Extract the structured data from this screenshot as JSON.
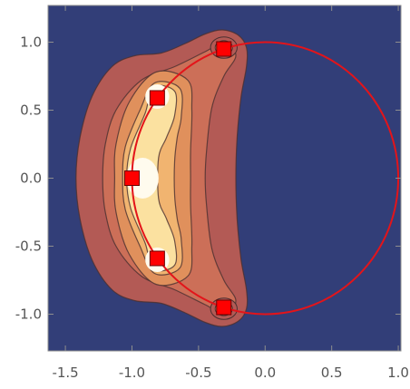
{
  "chart_data": {
    "type": "contour",
    "title": "",
    "xlabel": "",
    "ylabel": "",
    "xlim": [
      -1.63,
      1.02
    ],
    "ylim": [
      -1.27,
      1.27
    ],
    "x_ticks": [
      -1.5,
      -1.0,
      -0.5,
      0.0,
      0.5,
      1.0
    ],
    "x_tick_labels": [
      "-1.5",
      "-1.0",
      "-0.5",
      "0.0",
      "0.5",
      "1.0"
    ],
    "y_ticks": [
      -1.0,
      -0.5,
      0.0,
      0.5,
      1.0
    ],
    "y_tick_labels": [
      "-1.0",
      "-0.5",
      "0.0",
      "0.5",
      "1.0"
    ],
    "grid": false,
    "background_color": "#323e78",
    "contour_levels": [
      {
        "level": 1,
        "color": "#b35a55",
        "points": [
          [
            -0.32,
            1.09
          ],
          [
            -0.2,
            1.05
          ],
          [
            -0.14,
            0.96
          ],
          [
            -0.14,
            0.82
          ],
          [
            -0.18,
            0.6
          ],
          [
            -0.21,
            0.3
          ],
          [
            -0.22,
            0.0
          ],
          [
            -0.21,
            -0.3
          ],
          [
            -0.18,
            -0.6
          ],
          [
            -0.14,
            -0.82
          ],
          [
            -0.14,
            -0.96
          ],
          [
            -0.2,
            -1.05
          ],
          [
            -0.32,
            -1.09
          ],
          [
            -0.45,
            -1.06
          ],
          [
            -0.6,
            -0.99
          ],
          [
            -0.78,
            -0.92
          ],
          [
            -0.98,
            -0.9
          ],
          [
            -1.15,
            -0.82
          ],
          [
            -1.3,
            -0.6
          ],
          [
            -1.39,
            -0.3
          ],
          [
            -1.42,
            0.0
          ],
          [
            -1.39,
            0.3
          ],
          [
            -1.3,
            0.6
          ],
          [
            -1.15,
            0.82
          ],
          [
            -0.98,
            0.9
          ],
          [
            -0.78,
            0.92
          ],
          [
            -0.6,
            0.99
          ],
          [
            -0.45,
            1.06
          ]
        ]
      },
      {
        "level": 2,
        "color": "#cc6f58",
        "points": [
          [
            -0.3,
            1.0
          ],
          [
            -0.22,
            0.9
          ],
          [
            -0.31,
            0.75
          ],
          [
            -0.4,
            0.52
          ],
          [
            -0.44,
            0.2
          ],
          [
            -0.45,
            0.0
          ],
          [
            -0.44,
            -0.2
          ],
          [
            -0.4,
            -0.52
          ],
          [
            -0.31,
            -0.75
          ],
          [
            -0.22,
            -0.9
          ],
          [
            -0.3,
            -1.0
          ],
          [
            -0.45,
            -0.93
          ],
          [
            -0.68,
            -0.82
          ],
          [
            -0.93,
            -0.72
          ],
          [
            -1.12,
            -0.5
          ],
          [
            -1.2,
            -0.25
          ],
          [
            -1.22,
            0.0
          ],
          [
            -1.2,
            0.25
          ],
          [
            -1.12,
            0.5
          ],
          [
            -0.93,
            0.72
          ],
          [
            -0.68,
            0.82
          ],
          [
            -0.45,
            0.93
          ]
        ]
      },
      {
        "level": 3,
        "color": "#e0905c",
        "points": [
          [
            -0.58,
            0.72
          ],
          [
            -0.55,
            0.5
          ],
          [
            -0.56,
            0.2
          ],
          [
            -0.56,
            0.0
          ],
          [
            -0.56,
            -0.2
          ],
          [
            -0.55,
            -0.5
          ],
          [
            -0.58,
            -0.72
          ],
          [
            -0.82,
            -0.78
          ],
          [
            -1.02,
            -0.56
          ],
          [
            -1.12,
            -0.25
          ],
          [
            -1.13,
            0.0
          ],
          [
            -1.12,
            0.25
          ],
          [
            -1.02,
            0.56
          ],
          [
            -0.82,
            0.78
          ]
        ]
      },
      {
        "level": 4,
        "color": "#f1b470",
        "points": [
          [
            -0.64,
            0.66
          ],
          [
            -0.63,
            0.45
          ],
          [
            -0.66,
            0.3
          ],
          [
            -0.68,
            0.12
          ],
          [
            -0.68,
            -0.12
          ],
          [
            -0.66,
            -0.3
          ],
          [
            -0.63,
            -0.45
          ],
          [
            -0.64,
            -0.66
          ],
          [
            -0.83,
            -0.7
          ],
          [
            -0.94,
            -0.5
          ],
          [
            -1.05,
            -0.23
          ],
          [
            -1.07,
            0.0
          ],
          [
            -1.05,
            0.23
          ],
          [
            -0.94,
            0.5
          ],
          [
            -0.83,
            0.7
          ]
        ]
      },
      {
        "level": 5,
        "color": "#fbe1a0",
        "points": [
          [
            -0.68,
            0.64
          ],
          [
            -0.68,
            0.46
          ],
          [
            -0.74,
            0.3
          ],
          [
            -0.8,
            0.15
          ],
          [
            -0.8,
            -0.15
          ],
          [
            -0.74,
            -0.3
          ],
          [
            -0.68,
            -0.46
          ],
          [
            -0.68,
            -0.64
          ],
          [
            -0.84,
            -0.67
          ],
          [
            -0.9,
            -0.48
          ],
          [
            -1.01,
            -0.22
          ],
          [
            -1.04,
            0.0
          ],
          [
            -1.01,
            0.22
          ],
          [
            -0.9,
            0.48
          ],
          [
            -0.84,
            0.67
          ]
        ]
      }
    ],
    "peaks": [
      {
        "x": -0.81,
        "y": 0.6,
        "rx": 0.09,
        "ry": 0.09,
        "color": "#fffbee"
      },
      {
        "x": -0.81,
        "y": -0.6,
        "rx": 0.09,
        "ry": 0.09,
        "color": "#fffbee"
      },
      {
        "x": -0.92,
        "y": 0.0,
        "rx": 0.12,
        "ry": 0.15,
        "color": "#fffbee"
      }
    ],
    "lobes": [
      {
        "x": -0.31,
        "y": 0.96,
        "rings": [
          0.1,
          0.065,
          0.035
        ]
      },
      {
        "x": -0.31,
        "y": -0.96,
        "rings": [
          0.1,
          0.065,
          0.035
        ]
      }
    ],
    "lobe_colors": [
      "#b35a55",
      "#e0905c",
      "#fbe1a0"
    ],
    "circle": {
      "cx": 0.0,
      "cy": 0.0,
      "r": 1.0,
      "color": "#e3141a"
    },
    "markers": [
      {
        "x": -0.31,
        "y": 0.95
      },
      {
        "x": -0.81,
        "y": 0.59
      },
      {
        "x": -1.0,
        "y": 0.0
      },
      {
        "x": -0.81,
        "y": -0.59
      },
      {
        "x": -0.31,
        "y": -0.95
      }
    ],
    "marker_color": "#ff0000"
  }
}
